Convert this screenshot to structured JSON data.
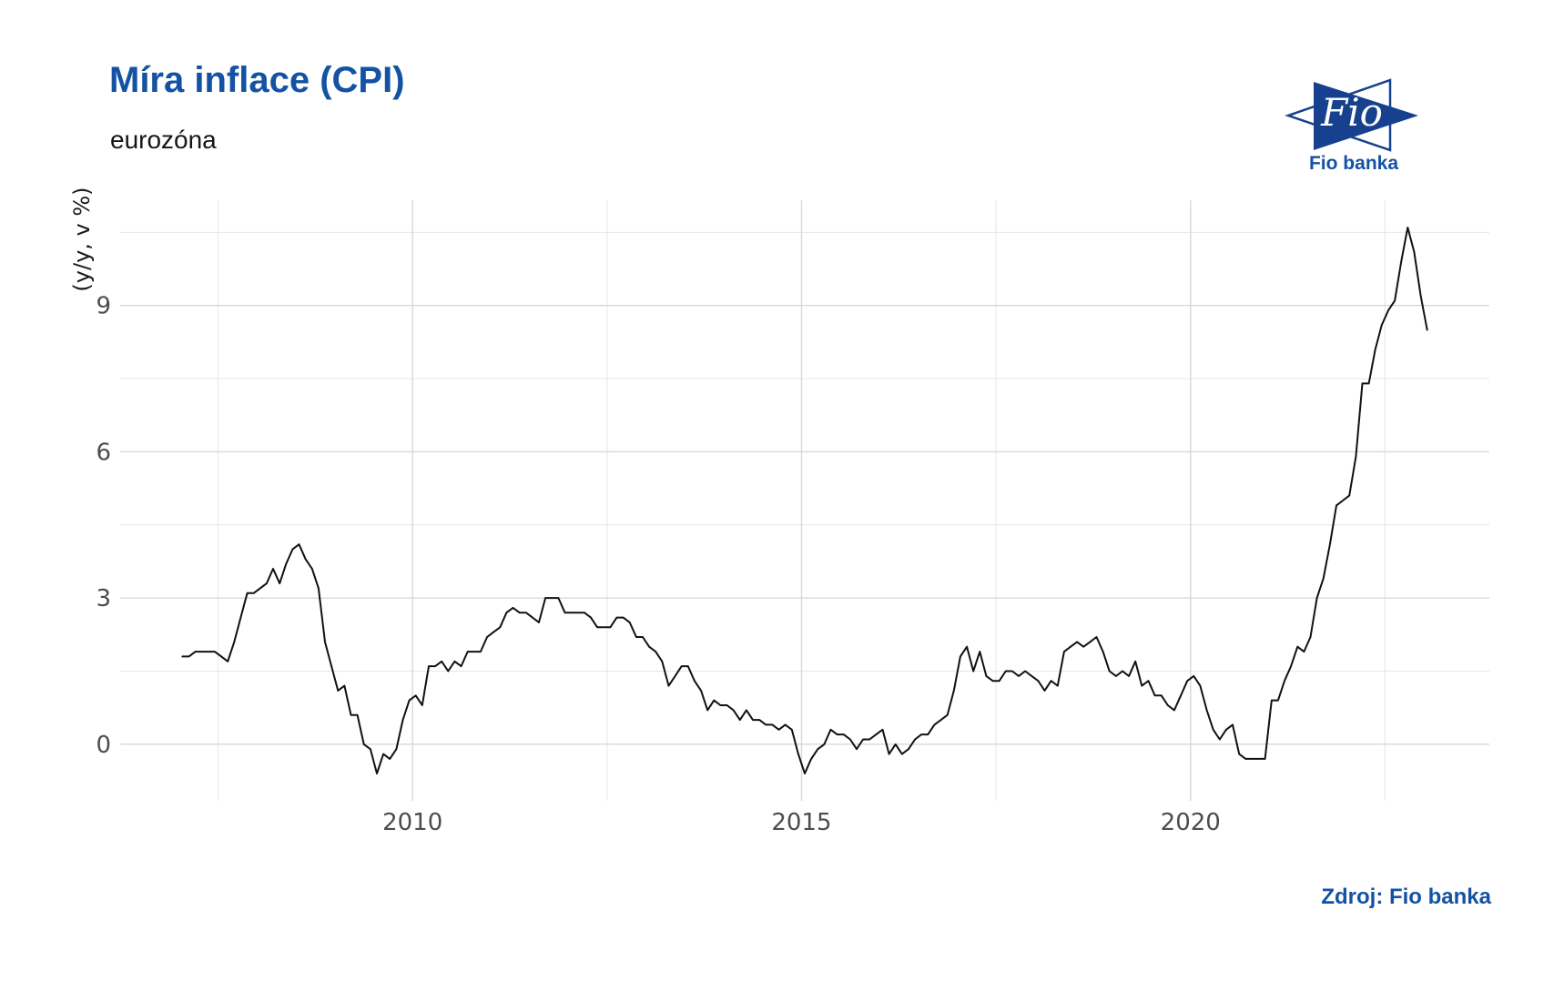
{
  "header": {
    "title": "Míra inflace (CPI)",
    "subtitle": "eurozóna"
  },
  "logo": {
    "text": "Fio",
    "caption": "Fio banka"
  },
  "source": {
    "label": "Zdroj: Fio banka"
  },
  "colors": {
    "accent": "#1452a3",
    "logo_blue": "#17418f",
    "line": "#111111",
    "grid_major": "#d8d8d8",
    "grid_minor": "#e6e6e6",
    "tick_label": "#4d4d4d"
  },
  "chart_data": {
    "type": "line",
    "title": "Míra inflace (CPI)",
    "subtitle": "eurozóna",
    "xlabel": "",
    "ylabel": "(y/y, v %)",
    "frequency": "monthly",
    "x_start": {
      "year": 2007,
      "month": 1
    },
    "x_end": {
      "year": 2023,
      "month": 1
    },
    "values": [
      1.8,
      1.8,
      1.9,
      1.9,
      1.9,
      1.9,
      1.8,
      1.7,
      2.1,
      2.6,
      3.1,
      3.1,
      3.2,
      3.3,
      3.6,
      3.3,
      3.7,
      4.0,
      4.1,
      3.8,
      3.6,
      3.2,
      2.1,
      1.6,
      1.1,
      1.2,
      0.6,
      0.6,
      0.0,
      -0.1,
      -0.6,
      -0.2,
      -0.3,
      -0.1,
      0.5,
      0.9,
      1.0,
      0.8,
      1.6,
      1.6,
      1.7,
      1.5,
      1.7,
      1.6,
      1.9,
      1.9,
      1.9,
      2.2,
      2.3,
      2.4,
      2.7,
      2.8,
      2.7,
      2.7,
      2.6,
      2.5,
      3.0,
      3.0,
      3.0,
      2.7,
      2.7,
      2.7,
      2.7,
      2.6,
      2.4,
      2.4,
      2.4,
      2.6,
      2.6,
      2.5,
      2.2,
      2.2,
      2.0,
      1.9,
      1.7,
      1.2,
      1.4,
      1.6,
      1.6,
      1.3,
      1.1,
      0.7,
      0.9,
      0.8,
      0.8,
      0.7,
      0.5,
      0.7,
      0.5,
      0.5,
      0.4,
      0.4,
      0.3,
      0.4,
      0.3,
      -0.2,
      -0.6,
      -0.3,
      -0.1,
      0.0,
      0.3,
      0.2,
      0.2,
      0.1,
      -0.1,
      0.1,
      0.1,
      0.2,
      0.3,
      -0.2,
      0.0,
      -0.2,
      -0.1,
      0.1,
      0.2,
      0.2,
      0.4,
      0.5,
      0.6,
      1.1,
      1.8,
      2.0,
      1.5,
      1.9,
      1.4,
      1.3,
      1.3,
      1.5,
      1.5,
      1.4,
      1.5,
      1.4,
      1.3,
      1.1,
      1.3,
      1.2,
      1.9,
      2.0,
      2.1,
      2.0,
      2.1,
      2.2,
      1.9,
      1.5,
      1.4,
      1.5,
      1.4,
      1.7,
      1.2,
      1.3,
      1.0,
      1.0,
      0.8,
      0.7,
      1.0,
      1.3,
      1.4,
      1.2,
      0.7,
      0.3,
      0.1,
      0.3,
      0.4,
      -0.2,
      -0.3,
      -0.3,
      -0.3,
      -0.3,
      0.9,
      0.9,
      1.3,
      1.6,
      2.0,
      1.9,
      2.2,
      3.0,
      3.4,
      4.1,
      4.9,
      5.0,
      5.1,
      5.9,
      7.4,
      7.4,
      8.1,
      8.6,
      8.9,
      9.1,
      9.9,
      10.6,
      10.1,
      9.2,
      8.5
    ],
    "x_ticks": [
      2010,
      2015,
      2020
    ],
    "x_minor": [
      2007.5,
      2012.5,
      2017.5,
      2022.5
    ],
    "y_ticks": [
      0,
      3,
      6,
      9
    ],
    "y_minor": [
      1.5,
      4.5,
      7.5,
      10.5
    ],
    "xlim": [
      2006.242,
      2023.841
    ],
    "ylim": [
      -1.16,
      11.16
    ],
    "grid": true,
    "legend": false
  }
}
